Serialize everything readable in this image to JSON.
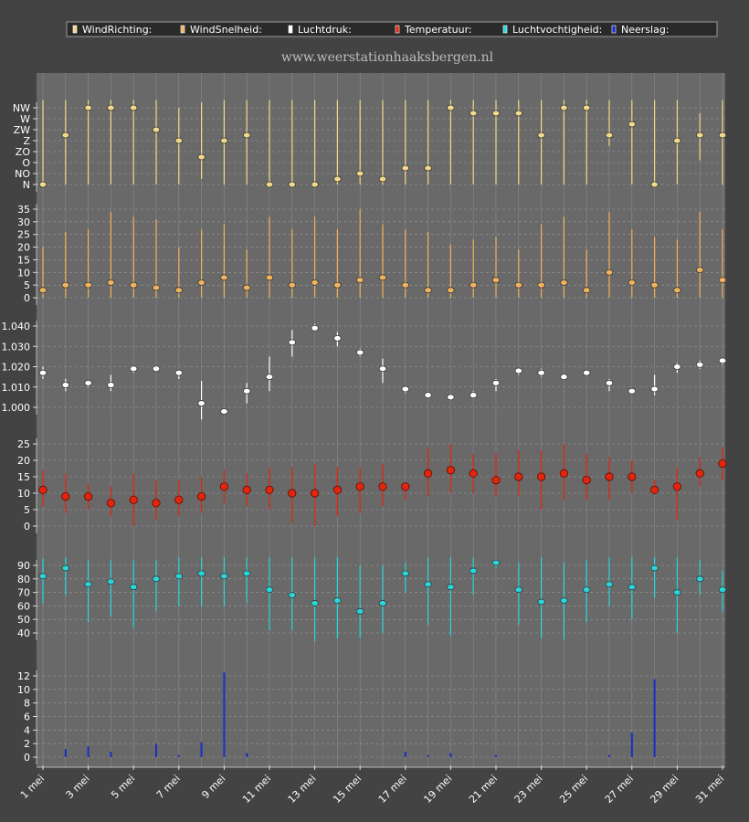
{
  "site": "www.weerstationhaaksbergen.nl",
  "legend": [
    {
      "label": "WindRichting:",
      "color": "#f5d98a"
    },
    {
      "label": "WindSnelheid:",
      "color": "#f3b25e"
    },
    {
      "label": "Luchtdruk:",
      "color": "#ffffff"
    },
    {
      "label": "Temperatuur:",
      "color": "#e2260d"
    },
    {
      "label": "Luchtvochtigheid:",
      "color": "#27d7dc"
    },
    {
      "label": "Neerslag:",
      "color": "#1a2ec8"
    }
  ],
  "chart_data": {
    "type": "multi-panel",
    "categories": [
      "1 mei",
      "2 mei",
      "3 mei",
      "4 mei",
      "5 mei",
      "6 mei",
      "7 mei",
      "8 mei",
      "9 mei",
      "10 mei",
      "11 mei",
      "12 mei",
      "13 mei",
      "14 mei",
      "15 mei",
      "16 mei",
      "17 mei",
      "18 mei",
      "19 mei",
      "20 mei",
      "21 mei",
      "22 mei",
      "23 mei",
      "24 mei",
      "25 mei",
      "26 mei",
      "27 mei",
      "28 mei",
      "29 mei",
      "30 mei",
      "31 mei"
    ],
    "xtick_labels": [
      "1 mei",
      "3 mei",
      "5 mei",
      "7 mei",
      "9 mei",
      "11 mei",
      "13 mei",
      "15 mei",
      "17 mei",
      "19 mei",
      "21 mei",
      "23 mei",
      "25 mei",
      "27 mei",
      "29 mei",
      "31 mei"
    ],
    "panels": [
      {
        "name": "WindRichting",
        "kind": "range-dot",
        "color": "#f5d98a",
        "ylim": [
          0,
          7
        ],
        "ytick_labels": [
          "N",
          "NO",
          "O",
          "ZO",
          "Z",
          "ZW",
          "W",
          "NW"
        ],
        "values": [
          0,
          4.5,
          7,
          7,
          7,
          5,
          4,
          2.5,
          4,
          4.5,
          0,
          0,
          0,
          0.5,
          1,
          0.5,
          1.5,
          1.5,
          7,
          6.5,
          6.5,
          6.5,
          4.5,
          7,
          7,
          4.5,
          5.5,
          0,
          4,
          4.5,
          4.5
        ],
        "low": [
          0,
          0,
          0,
          0,
          0,
          0,
          0,
          0.5,
          0,
          0,
          0,
          0,
          0,
          0,
          0,
          0,
          0,
          0,
          0,
          0,
          0,
          0,
          0,
          0,
          0,
          3.5,
          0,
          0,
          0,
          2.2,
          0
        ],
        "high": [
          7.7,
          7.7,
          7.7,
          7.7,
          7.7,
          7.7,
          7,
          7.5,
          7.7,
          7.7,
          7.7,
          7.7,
          7.7,
          7.7,
          7.7,
          7.7,
          7.7,
          7.7,
          7.7,
          7.7,
          7.7,
          7.7,
          7.7,
          7.7,
          7.7,
          7.7,
          7.7,
          7.7,
          7.7,
          6.5,
          7.7
        ]
      },
      {
        "name": "WindSnelheid",
        "kind": "range-dot",
        "color": "#f3b25e",
        "ylim": [
          0,
          35
        ],
        "ytick_values": [
          0,
          5,
          10,
          15,
          20,
          25,
          30,
          35
        ],
        "values": [
          3,
          5,
          5,
          6,
          5,
          4,
          3,
          6,
          8,
          4,
          8,
          5,
          6,
          5,
          7,
          8,
          5,
          3,
          3,
          5,
          7,
          5,
          5,
          6,
          3,
          10,
          6,
          5,
          3,
          11,
          7
        ],
        "low": [
          0,
          0,
          0,
          0,
          0,
          0,
          0,
          0,
          0,
          0,
          0,
          0,
          0,
          0,
          0,
          0,
          0,
          0,
          0,
          0,
          0,
          0,
          0,
          0,
          0,
          0,
          0,
          0,
          0,
          0,
          0
        ],
        "high": [
          20,
          26,
          27,
          34,
          32,
          31,
          20,
          27,
          29,
          19,
          32,
          27,
          32,
          27,
          35,
          29,
          27,
          26,
          21,
          23,
          24,
          19,
          29,
          32,
          19,
          34,
          27,
          24,
          23,
          34,
          27
        ]
      },
      {
        "name": "Luchtdruk",
        "kind": "range-dot",
        "color": "#ffffff",
        "ylim": [
          0.99,
          1.045
        ],
        "ytick_values": [
          1.0,
          1.01,
          1.02,
          1.03,
          1.04
        ],
        "ytick_labels": [
          "1.000",
          "1.010",
          "1.020",
          "1.030",
          "1.040"
        ],
        "values": [
          1.017,
          1.011,
          1.012,
          1.011,
          1.019,
          1.019,
          1.017,
          1.002,
          0.998,
          1.008,
          1.015,
          1.032,
          1.039,
          1.034,
          1.027,
          1.019,
          1.009,
          1.006,
          1.005,
          1.006,
          1.012,
          1.018,
          1.017,
          1.015,
          1.017,
          1.012,
          1.008,
          1.009,
          1.02,
          1.021,
          1.023
        ],
        "low": [
          1.014,
          1.008,
          1.01,
          1.008,
          1.017,
          1.018,
          1.014,
          0.994,
          0.997,
          1.002,
          1.008,
          1.025,
          1.038,
          1.03,
          1.025,
          1.012,
          1.007,
          1.005,
          1.004,
          1.005,
          1.008,
          1.016,
          1.015,
          1.014,
          1.016,
          1.008,
          1.007,
          1.006,
          1.017,
          1.019,
          1.021
        ],
        "high": [
          1.02,
          1.014,
          1.013,
          1.016,
          1.02,
          1.02,
          1.018,
          1.013,
          0.999,
          1.012,
          1.025,
          1.038,
          1.041,
          1.037,
          1.029,
          1.024,
          1.01,
          1.007,
          1.006,
          1.008,
          1.014,
          1.019,
          1.019,
          1.016,
          1.018,
          1.014,
          1.009,
          1.016,
          1.022,
          1.023,
          1.024
        ]
      },
      {
        "name": "Temperatuur",
        "kind": "range-dot",
        "color": "#e2260d",
        "ylim": [
          -2,
          27
        ],
        "ytick_values": [
          0,
          5,
          10,
          15,
          20,
          25
        ],
        "values": [
          11,
          9,
          9,
          7,
          8,
          7,
          8,
          9,
          12,
          11,
          11,
          10,
          10,
          11,
          12,
          12,
          12,
          16,
          17,
          16,
          14,
          15,
          15,
          16,
          14,
          15,
          15,
          11,
          12,
          16,
          19
        ],
        "low": [
          6,
          4,
          5,
          3,
          0,
          2,
          3,
          4,
          7,
          6,
          5,
          1,
          0,
          3,
          4,
          6,
          8,
          9,
          10,
          10,
          9,
          9,
          5,
          8,
          8,
          8,
          10,
          10,
          2,
          12,
          14
        ],
        "high": [
          17,
          16,
          13,
          12,
          16,
          14,
          14,
          15,
          17,
          16,
          18,
          18,
          19,
          18,
          18,
          19,
          13,
          24,
          25,
          22,
          22,
          23,
          23,
          25,
          22,
          21,
          20,
          14,
          18,
          21,
          24
        ]
      },
      {
        "name": "Luchtvochtigheid",
        "kind": "range-dot",
        "color": "#27d7dc",
        "ylim": [
          33,
          100
        ],
        "ytick_values": [
          40,
          50,
          60,
          70,
          80,
          90
        ],
        "values": [
          82,
          88,
          76,
          78,
          74,
          80,
          82,
          84,
          82,
          84,
          72,
          68,
          62,
          64,
          56,
          62,
          84,
          76,
          74,
          86,
          92,
          72,
          63,
          64,
          72,
          76,
          74,
          88,
          70,
          80,
          72
        ],
        "low": [
          62,
          68,
          48,
          52,
          44,
          56,
          60,
          60,
          60,
          62,
          42,
          42,
          34,
          36,
          36,
          40,
          70,
          46,
          38,
          68,
          88,
          46,
          36,
          35,
          48,
          60,
          50,
          66,
          40,
          68,
          56
        ],
        "high": [
          95,
          96,
          94,
          94,
          94,
          94,
          96,
          96,
          96,
          96,
          96,
          96,
          96,
          96,
          90,
          90,
          92,
          96,
          96,
          96,
          95,
          92,
          96,
          92,
          94,
          96,
          96,
          96,
          96,
          94,
          86
        ]
      },
      {
        "name": "Neerslag",
        "kind": "bar",
        "color": "#1a2ec8",
        "ylim": [
          -0.4,
          13
        ],
        "ytick_values": [
          0,
          2,
          4,
          6,
          8,
          10,
          12
        ],
        "values": [
          0,
          1.2,
          1.6,
          0.8,
          0,
          2.0,
          0.3,
          2.2,
          12.5,
          0.6,
          0,
          0,
          0,
          0,
          0,
          0,
          0.8,
          0.3,
          0.6,
          0,
          0.3,
          0,
          0,
          0,
          0,
          0.3,
          3.6,
          11.5,
          0,
          0,
          0
        ]
      }
    ]
  }
}
